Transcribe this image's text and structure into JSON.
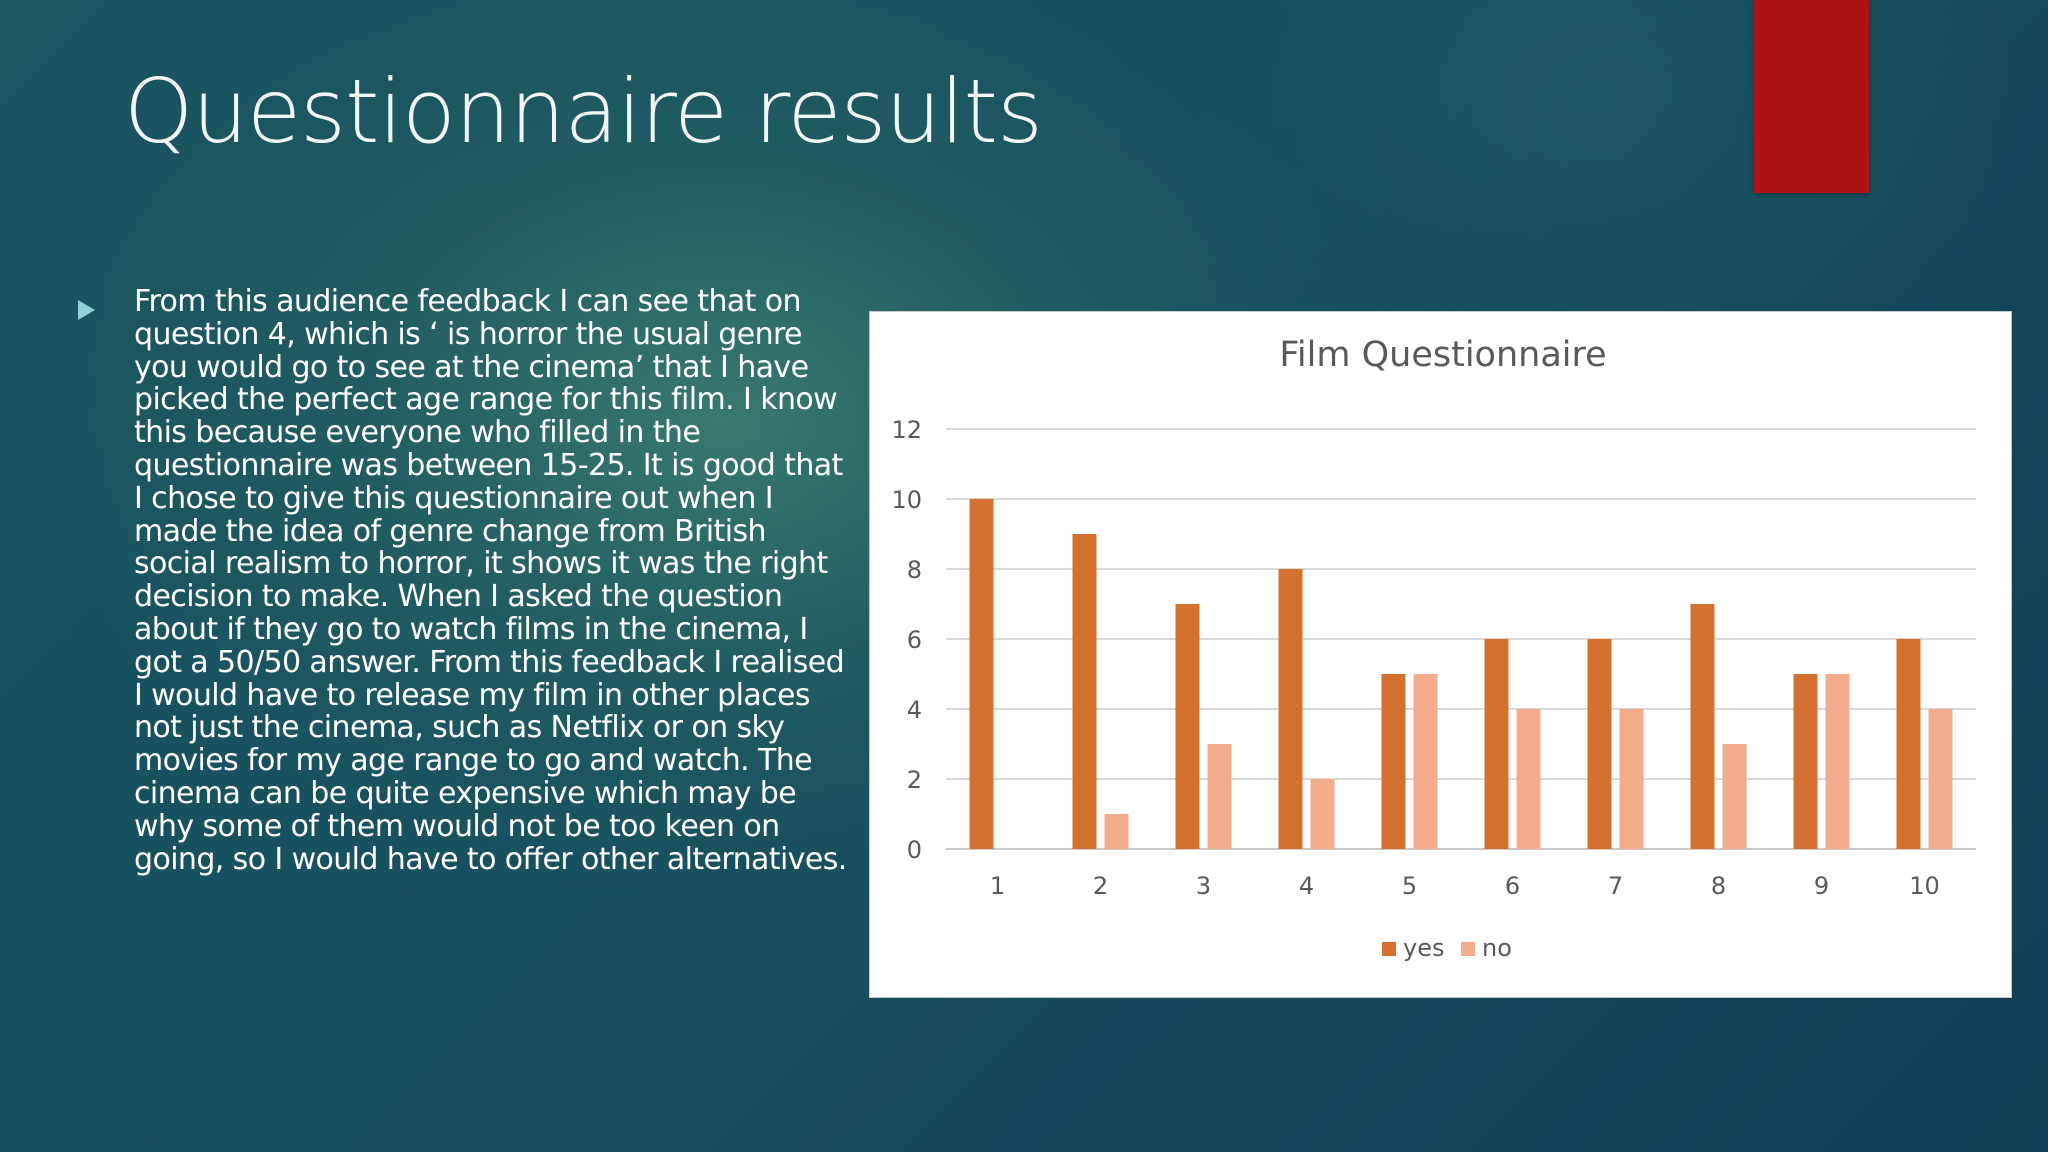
{
  "slide": {
    "title": "Questionnaire results",
    "bullet_text": "From this audience feedback I can see that on question 4, which is  ‘ is horror the usual genre you would go to see at the cinema’ that I have picked the perfect age range for this film. I know this because everyone who filled in the questionnaire was between 15-25. It is good that I chose to give this questionnaire out when I made the idea of genre change from British social realism to horror, it shows it was the right decision to make. When I asked the question about if they go to watch films in the cinema, I got a 50/50 answer. From this feedback I realised I would have to release my film in other places not just the cinema, such as Netflix or on sky movies for my age range to go and watch. The cinema can be quite expensive which may be why some of them would not be too keen on going, so I would have to offer other alternatives.",
    "accent_color": "#ad1515",
    "bullet_icon": "triangle-right-icon"
  },
  "chart_data": {
    "type": "bar",
    "title": "Film Questionnaire",
    "xlabel": "",
    "ylabel": "",
    "categories": [
      "1",
      "2",
      "3",
      "4",
      "5",
      "6",
      "7",
      "8",
      "9",
      "10"
    ],
    "series": [
      {
        "name": "yes",
        "color": "#d4712f",
        "values": [
          10,
          9,
          7,
          8,
          5,
          6,
          6,
          7,
          5,
          6
        ]
      },
      {
        "name": "no",
        "color": "#f2ac8b",
        "values": [
          0,
          1,
          3,
          2,
          5,
          4,
          4,
          3,
          5,
          4
        ]
      }
    ],
    "ylim": [
      0,
      12
    ],
    "yticks": [
      0,
      2,
      4,
      6,
      8,
      10,
      12
    ],
    "grid": true,
    "legend_position": "bottom"
  }
}
